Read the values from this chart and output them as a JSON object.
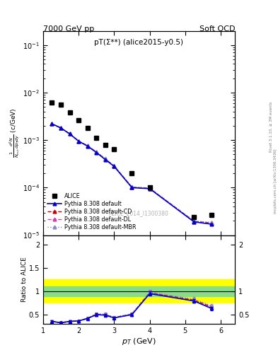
{
  "title_left": "7000 GeV pp",
  "title_right": "Soft QCD",
  "annotation": "pT(Σ**) (alice2015-y0.5)",
  "watermark": "ALICE_2014_I1300380",
  "right_label": "mcplots.cern.ch [arXiv:1306.3436]",
  "right_label2": "Rivet 3.1.10, ≥ 3M events",
  "ylabel_main": "$\\frac{1}{N_{evt}}\\frac{d^2N}{dp_{T}dy}$ (c/GeV)",
  "ylabel_ratio": "Ratio to ALICE",
  "xlabel": "$p_T$ (GeV)",
  "xlim": [
    1.0,
    6.4
  ],
  "ylim_main": [
    1e-05,
    0.2
  ],
  "ylim_ratio": [
    0.3,
    2.2
  ],
  "alice_x": [
    1.25,
    1.5,
    1.75,
    2.0,
    2.25,
    2.5,
    2.75,
    3.0,
    3.5,
    4.0,
    5.25,
    5.75
  ],
  "alice_y": [
    0.0062,
    0.0055,
    0.0038,
    0.0026,
    0.0018,
    0.0011,
    0.0008,
    0.00065,
    0.0002,
    0.0001,
    2.4e-05,
    2.7e-05
  ],
  "pythia_x": [
    1.25,
    1.5,
    1.75,
    2.0,
    2.25,
    2.5,
    2.75,
    3.0,
    3.5,
    4.0,
    5.25,
    5.75
  ],
  "pythia_default_y": [
    0.0022,
    0.0018,
    0.00135,
    0.00095,
    0.00075,
    0.00055,
    0.00039,
    0.00028,
    0.0001,
    9.5e-05,
    1.9e-05,
    1.7e-05
  ],
  "pythia_cd_y": [
    0.0022,
    0.0018,
    0.00135,
    0.00095,
    0.00076,
    0.00056,
    0.0004,
    0.000285,
    0.000102,
    9.7e-05,
    1.95e-05,
    1.8e-05
  ],
  "pythia_dl_y": [
    0.0022,
    0.0018,
    0.00135,
    0.00095,
    0.000755,
    0.000555,
    0.000395,
    0.000282,
    0.000101,
    9.6e-05,
    1.92e-05,
    1.75e-05
  ],
  "pythia_mbr_y": [
    0.0022,
    0.0018,
    0.00135,
    0.00095,
    0.00077,
    0.00057,
    0.00041,
    0.00029,
    0.000104,
    9.8e-05,
    2e-05,
    1.85e-05
  ],
  "color_default": "#0000cc",
  "color_cd": "#cc0000",
  "color_dl": "#cc44aa",
  "color_mbr": "#8888cc",
  "green_band": [
    0.9,
    1.1
  ],
  "yellow_band": [
    0.75,
    1.25
  ]
}
